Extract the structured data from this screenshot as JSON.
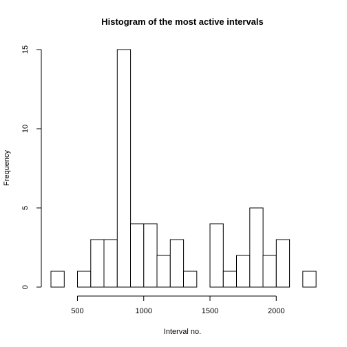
{
  "chart_data": {
    "type": "bar",
    "title": "Histogram of the most active intervals",
    "xlabel": "Interval no.",
    "ylabel": "Frequency",
    "bin_width": 100,
    "bins": [
      {
        "start": 300,
        "end": 400,
        "count": 1
      },
      {
        "start": 400,
        "end": 500,
        "count": 0
      },
      {
        "start": 500,
        "end": 600,
        "count": 1
      },
      {
        "start": 600,
        "end": 700,
        "count": 3
      },
      {
        "start": 700,
        "end": 800,
        "count": 3
      },
      {
        "start": 800,
        "end": 900,
        "count": 15
      },
      {
        "start": 900,
        "end": 1000,
        "count": 4
      },
      {
        "start": 1000,
        "end": 1100,
        "count": 4
      },
      {
        "start": 1100,
        "end": 1200,
        "count": 2
      },
      {
        "start": 1200,
        "end": 1300,
        "count": 3
      },
      {
        "start": 1300,
        "end": 1400,
        "count": 1
      },
      {
        "start": 1400,
        "end": 1500,
        "count": 0
      },
      {
        "start": 1500,
        "end": 1600,
        "count": 4
      },
      {
        "start": 1600,
        "end": 1700,
        "count": 1
      },
      {
        "start": 1700,
        "end": 1800,
        "count": 2
      },
      {
        "start": 1800,
        "end": 1900,
        "count": 5
      },
      {
        "start": 1900,
        "end": 2000,
        "count": 2
      },
      {
        "start": 2000,
        "end": 2100,
        "count": 3
      },
      {
        "start": 2100,
        "end": 2200,
        "count": 0
      },
      {
        "start": 2200,
        "end": 2300,
        "count": 1
      }
    ],
    "xlim": [
      300,
      2300
    ],
    "ylim": [
      0,
      15
    ],
    "x_ticks": [
      500,
      1000,
      1500,
      2000
    ],
    "y_ticks": [
      0,
      5,
      10,
      15
    ],
    "grid": false,
    "legend": "none"
  }
}
